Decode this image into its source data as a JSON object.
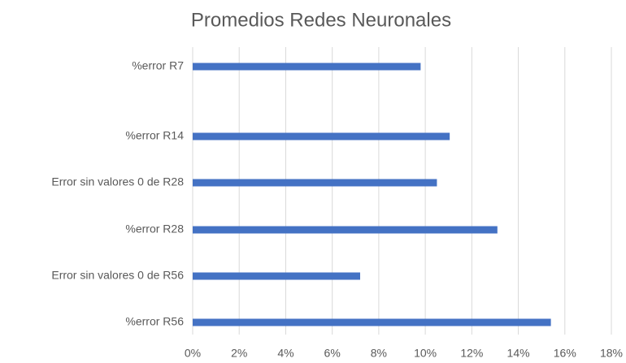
{
  "chart_data": {
    "type": "bar",
    "orientation": "horizontal",
    "title": "Promedios Redes Neuronales",
    "categories": [
      "%error R7",
      "%error R14",
      "Error sin valores 0 de R28",
      "%error R28",
      "Error sin valores 0 de R56",
      "%error R56"
    ],
    "values": [
      9.8,
      11.05,
      10.5,
      13.1,
      7.2,
      15.4
    ],
    "color": "#4472c4",
    "xlim": [
      0,
      18
    ],
    "xticks": [
      {
        "value": 0,
        "label": "0%"
      },
      {
        "value": 2,
        "label": "2%"
      },
      {
        "value": 4,
        "label": "4%"
      },
      {
        "value": 6,
        "label": "6%"
      },
      {
        "value": 8,
        "label": "8%"
      },
      {
        "value": 10,
        "label": "10%"
      },
      {
        "value": 12,
        "label": "12%"
      },
      {
        "value": 14,
        "label": "14%"
      },
      {
        "value": 16,
        "label": "16%"
      },
      {
        "value": 18,
        "label": "18%"
      }
    ],
    "grid": true
  }
}
